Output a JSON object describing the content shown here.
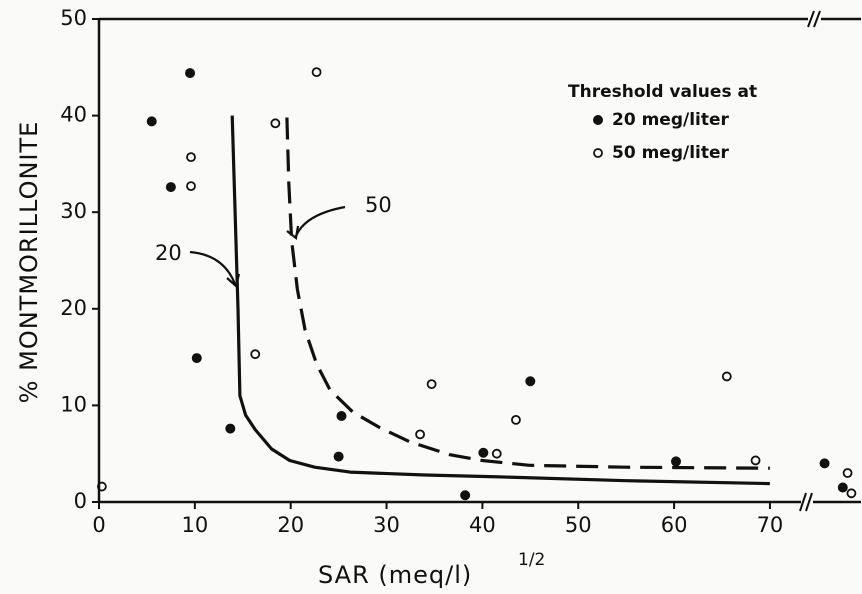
{
  "chart_data": {
    "type": "scatter",
    "x_label": "SAR (meq/l)",
    "x_label_exponent": "1/2",
    "y_label": "% MONTMORILLONITE",
    "legend_title": "Threshold values at",
    "xlim": [
      0,
      79.5
    ],
    "ylim": [
      0,
      50
    ],
    "xticks": [
      0,
      10,
      20,
      30,
      40,
      50,
      60,
      70
    ],
    "yticks": [
      0,
      10,
      20,
      30,
      40,
      50
    ],
    "series": [
      {
        "name": "20 meg/liter",
        "marker": "filled",
        "color": "#111111",
        "x": [
          9.5,
          5.5,
          7.5,
          10.2,
          13.7,
          25.3,
          25.0,
          38.2,
          40.1,
          45.0,
          60.2,
          75.7,
          77.6
        ],
        "values": [
          44.4,
          39.4,
          32.6,
          14.9,
          7.6,
          8.9,
          4.7,
          0.7,
          5.1,
          12.5,
          4.2,
          4.0,
          1.5
        ]
      },
      {
        "name": "50 meg/liter",
        "marker": "open",
        "color": "#111111",
        "x": [
          0.3,
          22.7,
          18.4,
          9.6,
          9.6,
          16.3,
          34.7,
          33.5,
          43.5,
          41.5,
          65.5,
          68.5,
          78.1,
          78.5
        ],
        "values": [
          1.6,
          44.5,
          39.2,
          35.7,
          32.7,
          15.3,
          12.2,
          7.0,
          8.5,
          5.0,
          13.0,
          4.3,
          3.0,
          0.9
        ]
      }
    ],
    "curves": [
      {
        "label": "20",
        "dashed": false,
        "x": [
          13.9,
          14.5,
          14.7,
          15.3,
          16.3,
          18.0,
          19.9,
          22.5,
          26.2,
          34.0,
          41.8,
          55.0,
          70.0
        ],
        "y": [
          40.0,
          20.0,
          11.0,
          9.0,
          7.5,
          5.5,
          4.3,
          3.6,
          3.1,
          2.8,
          2.6,
          2.2,
          1.9
        ]
      },
      {
        "label": "50",
        "dashed": true,
        "x": [
          19.6,
          19.8,
          20.1,
          20.7,
          21.5,
          22.7,
          24.1,
          26.5,
          29.3,
          32.5,
          36.6,
          40.0,
          44.9,
          55.0,
          70.0
        ],
        "y": [
          39.8,
          33.0,
          27.0,
          22.0,
          17.8,
          14.3,
          11.6,
          9.3,
          7.7,
          6.2,
          4.9,
          4.3,
          3.8,
          3.6,
          3.5
        ]
      }
    ]
  }
}
